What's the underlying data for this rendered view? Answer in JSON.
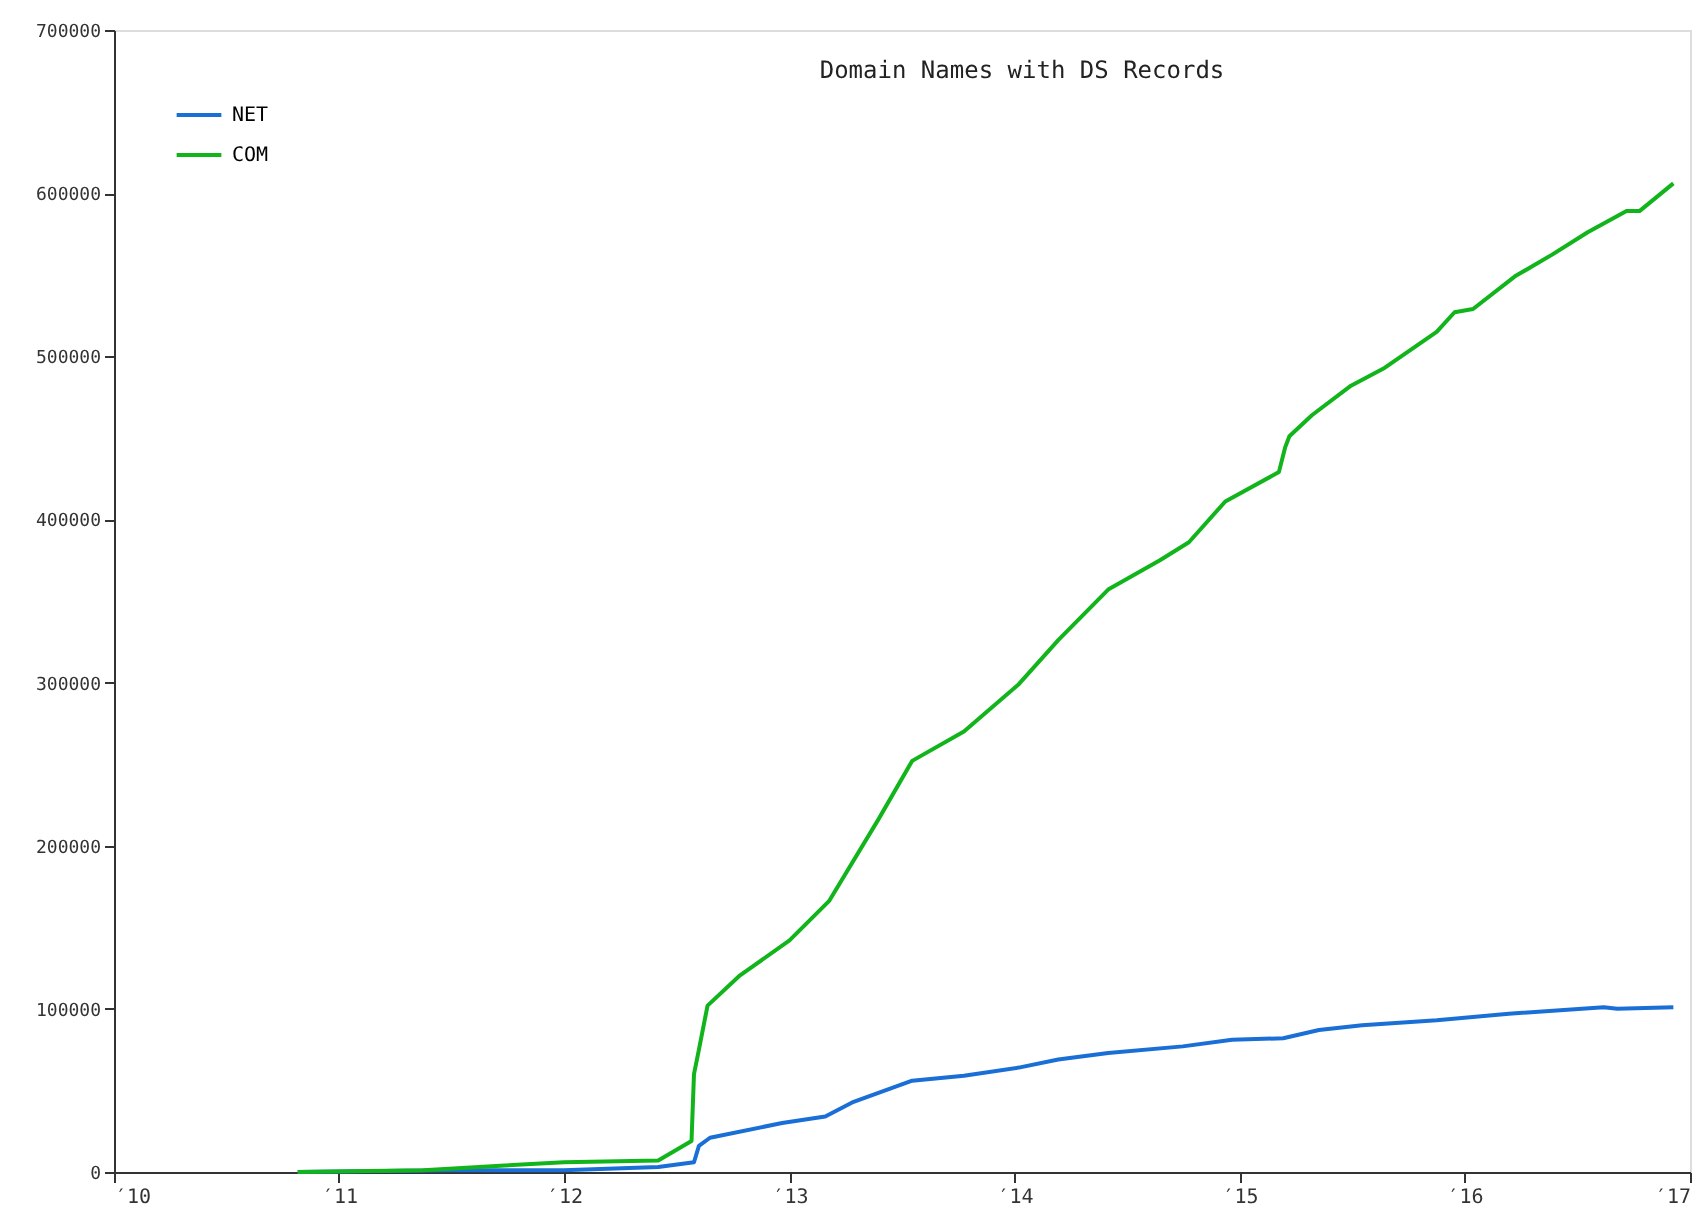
{
  "chart_data": {
    "type": "line",
    "title": "Domain Names with DS Records",
    "xlim": [
      "2010",
      "2017"
    ],
    "xticks": [
      {
        "value": "2010",
        "label": "′10"
      },
      {
        "value": "2011",
        "label": "′11"
      },
      {
        "value": "2012",
        "label": "′12"
      },
      {
        "value": "2013",
        "label": "′13"
      },
      {
        "value": "2014",
        "label": "′14"
      },
      {
        "value": "2015",
        "label": "′15"
      },
      {
        "value": "2016",
        "label": "′16"
      },
      {
        "value": "2017",
        "label": "′17"
      }
    ],
    "ylim": [
      0,
      700000
    ],
    "yticks": [
      0,
      100000,
      200000,
      300000,
      400000,
      500000,
      600000,
      700000
    ],
    "grid": false,
    "legend": "top left",
    "marker": "none",
    "line_style": "solid",
    "series": [
      {
        "name": "NET",
        "color": "#1a6fd6",
        "x": [
          "2010-10-26",
          "2011-07-01",
          "2012-01-01",
          "2012-06-02",
          "2012-07-30",
          "2012-08-07",
          "2012-08-25",
          "2012-12-20",
          "2013-02-28",
          "2013-04-15",
          "2013-07-19",
          "2013-10-11",
          "2014-01-08",
          "2014-03-13",
          "2014-06-02",
          "2014-10-01",
          "2014-12-20",
          "2015-03-13",
          "2015-05-10",
          "2015-07-19",
          "2015-11-17",
          "2016-03-13",
          "2016-08-14",
          "2016-09-05",
          "2016-12-05"
        ],
        "values": [
          0,
          1000,
          1000,
          3000,
          6000,
          16000,
          21000,
          30000,
          34000,
          43000,
          56000,
          59000,
          64000,
          69000,
          73000,
          77000,
          81000,
          82000,
          87000,
          90000,
          93000,
          97000,
          101000,
          100000,
          101000
        ]
      },
      {
        "name": "COM",
        "color": "#11b51b",
        "x": [
          "2010-10-26",
          "2011-05-18",
          "2011-09-27",
          "2012-01-01",
          "2012-06-02",
          "2012-07-26",
          "2012-07-30",
          "2012-08-07",
          "2012-08-21",
          "2012-10-11",
          "2013-01-01",
          "2013-03-06",
          "2013-05-25",
          "2013-07-19",
          "2013-10-11",
          "2014-01-08",
          "2014-03-13",
          "2014-06-02",
          "2014-08-25",
          "2014-10-11",
          "2014-12-09",
          "2015-03-06",
          "2015-03-16",
          "2015-03-23",
          "2015-04-29",
          "2015-07-01",
          "2015-08-25",
          "2015-11-17",
          "2015-12-16",
          "2016-01-15",
          "2016-03-23",
          "2016-05-21",
          "2016-07-19",
          "2016-09-20",
          "2016-10-11",
          "2016-12-05"
        ],
        "values": [
          0,
          1000,
          4000,
          6000,
          7000,
          19000,
          60000,
          75000,
          102000,
          120000,
          142000,
          166000,
          216000,
          252000,
          270000,
          299000,
          326000,
          357000,
          375000,
          386000,
          411000,
          429000,
          444000,
          451000,
          464000,
          482000,
          493000,
          515000,
          527000,
          529000,
          549000,
          562000,
          576000,
          589000,
          589000,
          606000
        ]
      }
    ]
  }
}
